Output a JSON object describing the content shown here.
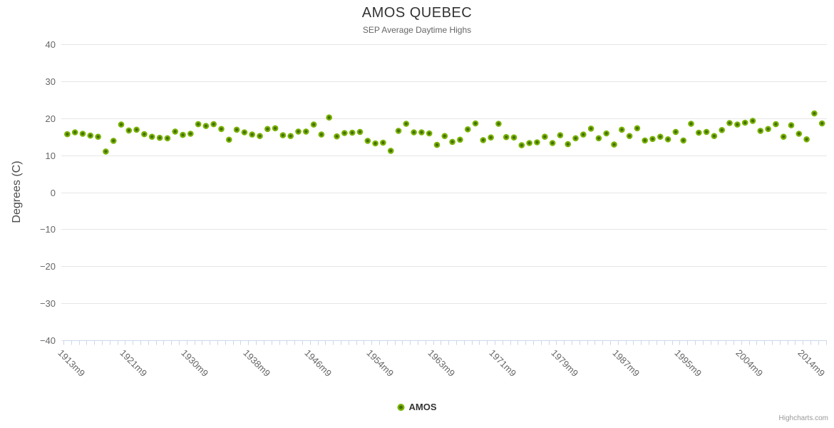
{
  "chart": {
    "title": "AMOS QUEBEC",
    "subtitle": "SEP Average Daytime Highs",
    "y_axis_title": "Degrees (C)",
    "legend": {
      "label": "AMOS"
    },
    "credits": "Highcharts.com"
  },
  "colors": {
    "marker_outer": "#77b300",
    "marker_inner": "#466d00",
    "grid": "#e6e6e6",
    "axis": "#ccd6eb",
    "axis_label": "#666666",
    "title_text": "#333333",
    "subtitle_text": "#666666",
    "credits_text": "#999999"
  },
  "chart_data": {
    "type": "scatter",
    "title": "AMOS QUEBEC",
    "subtitle": "SEP Average Daytime Highs",
    "xlabel": "",
    "ylabel": "Degrees (C)",
    "ylim": [
      -40,
      40
    ],
    "grid": true,
    "legend_position": "bottom-center",
    "y_ticks": [
      40,
      30,
      20,
      10,
      0,
      -10,
      -20,
      -30,
      -40
    ],
    "y_tick_labels": [
      "40",
      "30",
      "20",
      "10",
      "0",
      "−10",
      "−20",
      "−30",
      "−40"
    ],
    "x_tick_labels": [
      "1913m9",
      "1921m9",
      "1930m9",
      "1938m9",
      "1946m9",
      "1954m9",
      "1963m9",
      "1971m9",
      "1979m9",
      "1987m9",
      "1995m9",
      "2004m9",
      "2014m9"
    ],
    "x_tick_interval": 8,
    "series": [
      {
        "name": "AMOS",
        "color": "#77b300",
        "values": [
          15.7,
          16.2,
          15.8,
          15.3,
          15.0,
          11.0,
          13.9,
          18.3,
          16.7,
          16.9,
          15.7,
          15.0,
          14.7,
          14.6,
          16.4,
          15.5,
          15.8,
          18.4,
          17.9,
          18.4,
          17.1,
          14.2,
          16.9,
          16.2,
          15.6,
          15.2,
          17.1,
          17.3,
          15.4,
          15.2,
          16.4,
          16.4,
          18.3,
          15.6,
          20.2,
          15.1,
          16.0,
          16.1,
          16.3,
          13.9,
          13.2,
          13.4,
          11.2,
          16.6,
          18.5,
          16.2,
          16.2,
          15.9,
          12.8,
          15.2,
          13.6,
          14.2,
          17.0,
          18.6,
          14.1,
          14.8,
          18.5,
          14.9,
          14.8,
          12.7,
          13.3,
          13.5,
          15.0,
          13.3,
          15.4,
          13.0,
          14.6,
          15.6,
          17.2,
          14.6,
          15.9,
          12.9,
          16.9,
          15.2,
          17.3,
          14.0,
          14.4,
          15.0,
          14.3,
          16.3,
          14.0,
          18.5,
          16.1,
          16.3,
          15.2,
          16.8,
          18.7,
          18.3,
          18.8,
          19.3,
          16.6,
          17.1,
          18.4,
          15.0,
          18.1,
          15.8,
          14.3,
          21.3,
          18.6
        ]
      }
    ]
  }
}
